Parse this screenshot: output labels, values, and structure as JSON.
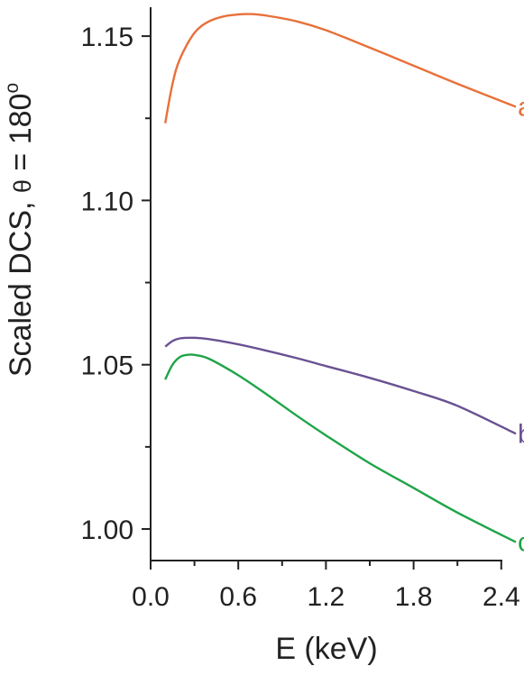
{
  "chart_data": {
    "type": "line",
    "title": "",
    "xlabel": "E (keV)",
    "ylabel_main": "Scaled DCS, ",
    "ylabel_theta": "θ",
    "ylabel_value": " = 180",
    "ylabel_degree": "o",
    "xlim": [
      0.0,
      2.5
    ],
    "ylim": [
      0.99,
      1.16
    ],
    "xticks": [
      0.0,
      0.6,
      1.2,
      1.8,
      2.4
    ],
    "xtick_labels": [
      "0.0",
      "0.6",
      "1.2",
      "1.8",
      "2.4"
    ],
    "yticks": [
      1.0,
      1.05,
      1.1,
      1.15
    ],
    "ytick_labels": [
      "1.00",
      "1.05",
      "1.10",
      "1.15"
    ],
    "grid": false,
    "legend": "none",
    "series": [
      {
        "name": "a",
        "color": "#E8703A",
        "x": [
          0.1,
          0.15,
          0.2,
          0.3,
          0.4,
          0.5,
          0.6,
          0.7,
          0.8,
          1.0,
          1.2,
          1.5,
          1.8,
          2.1,
          2.5
        ],
        "y": [
          1.1235,
          1.1355,
          1.143,
          1.151,
          1.1545,
          1.156,
          1.1566,
          1.1567,
          1.1562,
          1.1545,
          1.1518,
          1.1465,
          1.141,
          1.1355,
          1.1285
        ]
      },
      {
        "name": "b",
        "color": "#6A5192",
        "x": [
          0.1,
          0.15,
          0.2,
          0.3,
          0.4,
          0.6,
          0.8,
          1.0,
          1.2,
          1.5,
          1.8,
          2.1,
          2.5
        ],
        "y": [
          1.0555,
          1.0572,
          1.058,
          1.0582,
          1.0578,
          1.0562,
          1.0542,
          1.052,
          1.0496,
          1.046,
          1.042,
          1.0375,
          1.029
        ]
      },
      {
        "name": "c",
        "color": "#1FA447",
        "x": [
          0.1,
          0.15,
          0.2,
          0.25,
          0.3,
          0.4,
          0.6,
          0.8,
          1.0,
          1.2,
          1.5,
          1.8,
          2.1,
          2.5
        ],
        "y": [
          1.0455,
          1.05,
          1.0523,
          1.053,
          1.053,
          1.0518,
          1.0468,
          1.0408,
          1.0345,
          1.0285,
          1.02,
          1.0125,
          1.005,
          0.996
        ]
      }
    ]
  }
}
